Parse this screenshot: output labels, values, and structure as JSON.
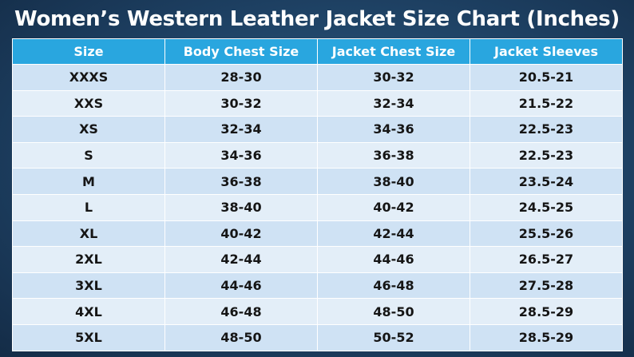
{
  "header": {
    "title": "Women’s Western Leather Jacket Size Chart (Inches)"
  },
  "table": {
    "columns": [
      "Size",
      "Body Chest Size",
      "Jacket Chest Size",
      "Jacket Sleeves"
    ],
    "rows": [
      [
        "XXXS",
        "28-30",
        "30-32",
        "20.5-21"
      ],
      [
        "XXS",
        "30-32",
        "32-34",
        "21.5-22"
      ],
      [
        "XS",
        "32-34",
        "34-36",
        "22.5-23"
      ],
      [
        "S",
        "34-36",
        "36-38",
        "22.5-23"
      ],
      [
        "M",
        "36-38",
        "38-40",
        "23.5-24"
      ],
      [
        "L",
        "38-40",
        "40-42",
        "24.5-25"
      ],
      [
        "XL",
        "40-42",
        "42-44",
        "25.5-26"
      ],
      [
        "2XL",
        "42-44",
        "44-46",
        "26.5-27"
      ],
      [
        "3XL",
        "44-46",
        "46-48",
        "27.5-28"
      ],
      [
        "4XL",
        "46-48",
        "48-50",
        "28.5-29"
      ],
      [
        "5XL",
        "48-50",
        "50-52",
        "28.5-29"
      ]
    ]
  }
}
